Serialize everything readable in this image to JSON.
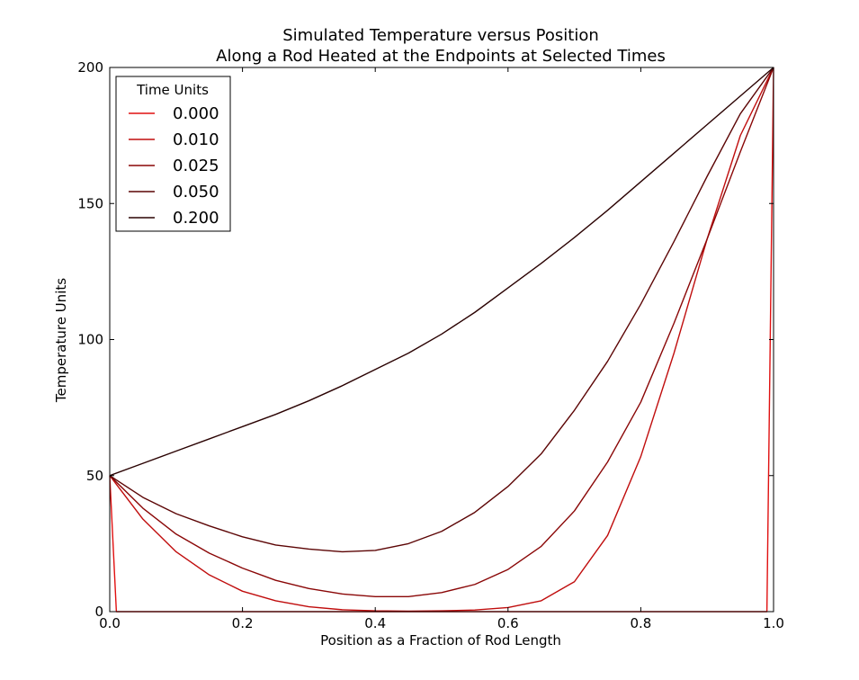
{
  "chart_data": {
    "type": "line",
    "title_lines": [
      "Simulated Temperature versus Position",
      "Along a Rod Heated at the Endpoints at Selected Times"
    ],
    "xlabel": "Position as a Fraction of Rod Length",
    "ylabel": "Temperature Units",
    "xlim": [
      0.0,
      1.0
    ],
    "ylim": [
      0,
      200
    ],
    "x_ticks": [
      0.0,
      0.2,
      0.4,
      0.6,
      0.8,
      1.0
    ],
    "x_tick_labels": [
      "0.0",
      "0.2",
      "0.4",
      "0.6",
      "0.8",
      "1.0"
    ],
    "y_ticks": [
      0,
      50,
      100,
      150,
      200
    ],
    "y_tick_labels": [
      "0",
      "50",
      "100",
      "150",
      "200"
    ],
    "grid": false,
    "legend": {
      "title": "Time Units",
      "placement": "top-left"
    },
    "series": [
      {
        "name": "0.000",
        "color": "#e01010",
        "x": [
          0.0,
          0.01,
          0.99,
          1.0
        ],
        "y": [
          50,
          0,
          0,
          200
        ]
      },
      {
        "name": "0.010",
        "color": "#c00d0d",
        "x": [
          0.0,
          0.05,
          0.1,
          0.15,
          0.2,
          0.25,
          0.3,
          0.35,
          0.4,
          0.45,
          0.5,
          0.55,
          0.6,
          0.65,
          0.7,
          0.75,
          0.8,
          0.85,
          0.9,
          0.95,
          1.0
        ],
        "y": [
          50,
          34,
          22,
          13.5,
          7.5,
          4,
          1.8,
          0.7,
          0.3,
          0.2,
          0.3,
          0.6,
          1.5,
          4,
          11,
          28,
          57,
          95,
          137,
          175,
          200
        ]
      },
      {
        "name": "0.025",
        "color": "#8a0707",
        "x": [
          0.0,
          0.05,
          0.1,
          0.15,
          0.2,
          0.25,
          0.3,
          0.35,
          0.4,
          0.45,
          0.5,
          0.55,
          0.6,
          0.65,
          0.7,
          0.75,
          0.8,
          0.85,
          0.9,
          0.95,
          1.0
        ],
        "y": [
          50,
          38,
          28.5,
          21.5,
          16,
          11.5,
          8.5,
          6.5,
          5.5,
          5.5,
          7,
          10,
          15.5,
          24,
          37,
          55,
          77,
          106,
          137,
          169,
          200
        ]
      },
      {
        "name": "0.050",
        "color": "#5c0505",
        "x": [
          0.0,
          0.05,
          0.1,
          0.15,
          0.2,
          0.25,
          0.3,
          0.35,
          0.4,
          0.45,
          0.5,
          0.55,
          0.6,
          0.65,
          0.7,
          0.75,
          0.8,
          0.85,
          0.9,
          0.95,
          1.0
        ],
        "y": [
          50,
          42,
          36,
          31.5,
          27.5,
          24.5,
          23,
          22,
          22.5,
          25,
          29.5,
          36.5,
          46,
          58,
          74,
          92,
          113,
          136,
          160,
          183,
          200
        ]
      },
      {
        "name": "0.200",
        "color": "#2a0202",
        "x": [
          0.0,
          0.05,
          0.1,
          0.15,
          0.2,
          0.25,
          0.3,
          0.35,
          0.4,
          0.45,
          0.5,
          0.55,
          0.6,
          0.65,
          0.7,
          0.75,
          0.8,
          0.85,
          0.9,
          0.95,
          1.0
        ],
        "y": [
          50,
          54.5,
          59,
          63.5,
          68,
          72.5,
          77.5,
          83,
          89,
          95,
          102,
          110,
          119,
          128,
          137.5,
          147.5,
          158,
          168.5,
          179,
          189.5,
          200
        ]
      }
    ]
  }
}
